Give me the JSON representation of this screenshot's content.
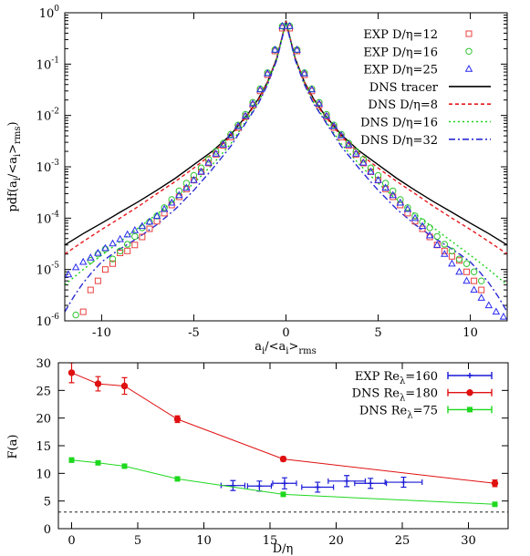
{
  "chart_data": [
    {
      "type": "scatter",
      "xlabel": "a_i/<a_i>_rms",
      "ylabel": "pdf(a_i/<a_i>_rms)",
      "xlim": [
        -12,
        12
      ],
      "ylim": [
        1e-06,
        1
      ],
      "y_scale": "log",
      "grid": false,
      "legend_position": "top-right",
      "x_ticks": [
        "-10",
        "-5",
        "0",
        "5",
        "10"
      ],
      "y_ticks": [
        {
          "base": "10",
          "exp": "0",
          "value": 1
        },
        {
          "base": "10",
          "exp": "-1",
          "value": 0.1
        },
        {
          "base": "10",
          "exp": "-2",
          "value": 0.01
        },
        {
          "base": "10",
          "exp": "-3",
          "value": 0.001
        },
        {
          "base": "10",
          "exp": "-4",
          "value": 0.0001
        },
        {
          "base": "10",
          "exp": "-5",
          "value": 1e-05
        },
        {
          "base": "10",
          "exp": "-6",
          "value": 1e-06
        }
      ],
      "series": [
        {
          "name": "EXP D/η=12",
          "kind": "points",
          "marker": "square",
          "color": "#e8403f",
          "x": [
            -11.0,
            -10.6,
            -10.2,
            -9.8,
            -9.4,
            -9.0,
            -8.6,
            -8.2,
            -7.8,
            -7.4,
            -7.0,
            -6.6,
            -6.2,
            -5.8,
            -5.4,
            -5.0,
            -4.6,
            -4.2,
            -3.8,
            -3.4,
            -3.0,
            -2.6,
            -2.2,
            -1.8,
            -1.4,
            -1.0,
            -0.6,
            -0.2,
            0.2,
            0.6,
            1.0,
            1.4,
            1.8,
            2.2,
            2.6,
            3.0,
            3.4,
            3.8,
            4.2,
            4.6,
            5.0,
            5.4,
            5.8,
            6.2,
            6.6,
            7.0,
            7.4,
            7.8,
            8.2,
            8.6,
            9.0,
            9.4,
            9.8,
            10.2,
            10.6
          ],
          "y": [
            1.5e-06,
            4e-06,
            6e-06,
            1e-05,
            1.3e-05,
            2.1e-05,
            2.3e-05,
            3e-05,
            4.3e-05,
            6.2e-05,
            8.7e-05,
            0.000125,
            0.00018,
            0.00026,
            0.00037,
            0.00055,
            0.0008,
            0.00118,
            0.00175,
            0.0026,
            0.0038,
            0.0058,
            0.0095,
            0.016,
            0.03,
            0.062,
            0.18,
            0.5,
            0.5,
            0.18,
            0.062,
            0.03,
            0.016,
            0.0095,
            0.0058,
            0.0038,
            0.0026,
            0.00175,
            0.00118,
            0.0008,
            0.00055,
            0.00037,
            0.00026,
            0.00018,
            0.000125,
            8.7e-05,
            6.2e-05,
            4.3e-05,
            3e-05,
            2.3e-05,
            1.8e-05,
            1.5e-05,
            9e-06,
            6e-06,
            4e-06
          ]
        },
        {
          "name": "EXP D/η=16",
          "kind": "points",
          "marker": "circle",
          "color": "#2ec42e",
          "x": [
            -11.4,
            -10.6,
            -10.2,
            -9.8,
            -9.4,
            -9.0,
            -8.6,
            -8.2,
            -7.8,
            -7.4,
            -7.0,
            -6.6,
            -6.2,
            -5.8,
            -5.4,
            -5.0,
            -4.6,
            -4.2,
            -3.8,
            -3.4,
            -3.0,
            -2.6,
            -2.2,
            -1.8,
            -1.4,
            -1.0,
            -0.6,
            -0.2,
            0.2,
            0.6,
            1.0,
            1.4,
            1.8,
            2.2,
            2.6,
            3.0,
            3.4,
            3.8,
            4.2,
            4.6,
            5.0,
            5.4,
            5.8,
            6.2,
            6.6,
            7.0,
            7.4,
            7.8,
            8.2,
            8.6,
            9.0,
            9.4,
            9.8,
            10.2,
            10.6
          ],
          "y": [
            1.3e-06,
            1.5e-05,
            2e-05,
            2.5e-05,
            1.6e-05,
            2.3e-05,
            3.1e-05,
            4.4e-05,
            6.5e-05,
            8.5e-05,
            0.00011,
            0.00016,
            0.00023,
            0.00034,
            0.00048,
            0.00068,
            0.00095,
            0.0014,
            0.002,
            0.0029,
            0.0043,
            0.0065,
            0.0105,
            0.018,
            0.033,
            0.068,
            0.19,
            0.55,
            0.55,
            0.19,
            0.068,
            0.033,
            0.018,
            0.0105,
            0.0065,
            0.0043,
            0.0029,
            0.002,
            0.0014,
            0.00095,
            0.00068,
            0.00048,
            0.00034,
            0.00023,
            0.00016,
            0.00011,
            8.5e-05,
            6.5e-05,
            4.4e-05,
            3.1e-05,
            2.3e-05,
            1.6e-05,
            1.3e-05,
            9e-06,
            6e-06
          ]
        },
        {
          "name": "EXP D/η=25",
          "kind": "points",
          "marker": "triangle",
          "color": "#2a2af0",
          "x": [
            -11.8,
            -11.4,
            -11.0,
            -10.6,
            -10.2,
            -9.8,
            -9.4,
            -9.0,
            -8.6,
            -8.2,
            -7.8,
            -7.4,
            -7.0,
            -6.6,
            -6.2,
            -5.8,
            -5.4,
            -5.0,
            -4.6,
            -4.2,
            -3.8,
            -3.4,
            -3.0,
            -2.6,
            -2.2,
            -1.8,
            -1.4,
            -1.0,
            -0.6,
            -0.2,
            0.2,
            0.6,
            1.0,
            1.4,
            1.8,
            2.2,
            2.6,
            3.0,
            3.4,
            3.8,
            4.2,
            4.6,
            5.0,
            5.4,
            5.8,
            6.2,
            6.6,
            7.0,
            7.4,
            7.8,
            8.2,
            8.6,
            9.0,
            9.4,
            9.8,
            10.2,
            10.6,
            11.0,
            11.4,
            11.8
          ],
          "y": [
            8e-06,
            1.1e-05,
            1.4e-05,
            1.7e-05,
            2.1e-05,
            2.6e-05,
            3.2e-05,
            3.9e-05,
            4.8e-05,
            5.8e-05,
            7e-05,
            8.5e-05,
            0.00011,
            0.00015,
            0.0002,
            0.00028,
            0.00039,
            0.00055,
            0.0008,
            0.0012,
            0.0018,
            0.0027,
            0.0041,
            0.0062,
            0.0098,
            0.017,
            0.032,
            0.066,
            0.19,
            0.55,
            0.55,
            0.19,
            0.066,
            0.032,
            0.017,
            0.0098,
            0.0062,
            0.0041,
            0.0027,
            0.0018,
            0.0012,
            0.0008,
            0.00055,
            0.00039,
            0.00028,
            0.0002,
            0.00015,
            0.0001,
            7e-05,
            4.6e-05,
            3e-05,
            2e-05,
            1.3e-05,
            9e-06,
            6e-06,
            4e-06,
            2.8e-06,
            2e-06,
            1.5e-06,
            1.2e-06
          ]
        },
        {
          "name": "DNS tracer",
          "kind": "line",
          "color": "#000000",
          "dash": "",
          "x": [
            -12,
            -11,
            -10,
            -9,
            -8,
            -7,
            -6,
            -5,
            -4,
            -3,
            -2,
            -1.5,
            -1,
            -0.5,
            -0.2,
            0,
            0.2,
            0.5,
            1,
            1.5,
            2,
            3,
            4,
            5,
            6,
            7,
            8,
            9,
            10,
            11,
            12
          ],
          "y": [
            3e-05,
            5e-05,
            8e-05,
            0.00013,
            0.00021,
            0.00035,
            0.0006,
            0.0011,
            0.002,
            0.0042,
            0.0115,
            0.021,
            0.045,
            0.13,
            0.35,
            0.7,
            0.35,
            0.13,
            0.045,
            0.021,
            0.0115,
            0.0042,
            0.002,
            0.0011,
            0.0006,
            0.00035,
            0.00021,
            0.00013,
            8e-05,
            5e-05,
            3e-05
          ]
        },
        {
          "name": "DNS D/η=8",
          "kind": "line",
          "color": "#e8171b",
          "dash": "4,3",
          "x": [
            -12,
            -11,
            -10,
            -9,
            -8,
            -7,
            -6,
            -5,
            -4,
            -3,
            -2,
            -1.5,
            -1,
            -0.5,
            -0.2,
            0,
            0.2,
            0.5,
            1,
            1.5,
            2,
            3,
            4,
            5,
            6,
            7,
            8,
            9,
            10,
            11,
            12
          ],
          "y": [
            2e-05,
            3.5e-05,
            6e-05,
            0.0001,
            0.00017,
            0.0003,
            0.00052,
            0.00095,
            0.0018,
            0.0039,
            0.011,
            0.02,
            0.044,
            0.13,
            0.35,
            0.68,
            0.35,
            0.13,
            0.044,
            0.02,
            0.011,
            0.0039,
            0.0018,
            0.00095,
            0.00052,
            0.0003,
            0.00017,
            0.0001,
            6e-05,
            3.5e-05,
            2e-05
          ]
        },
        {
          "name": "DNS D/η=16",
          "kind": "line",
          "color": "#15d415",
          "dash": "2,3",
          "x": [
            -12,
            -11,
            -10,
            -9,
            -8,
            -7,
            -6,
            -5,
            -4,
            -3,
            -2,
            -1.5,
            -1,
            -0.5,
            -0.2,
            0,
            0.2,
            0.5,
            1,
            1.5,
            2,
            3,
            4,
            5,
            6,
            7,
            8,
            9,
            10,
            11,
            12
          ],
          "y": [
            5e-06,
            1e-05,
            1.9e-05,
            3.5e-05,
            6.5e-05,
            0.00012,
            0.00023,
            0.00048,
            0.0011,
            0.0028,
            0.0095,
            0.018,
            0.042,
            0.125,
            0.34,
            0.66,
            0.34,
            0.125,
            0.042,
            0.018,
            0.0095,
            0.0028,
            0.0011,
            0.00048,
            0.00023,
            0.00012,
            6.5e-05,
            3.5e-05,
            1.9e-05,
            1e-05,
            5e-06
          ]
        },
        {
          "name": "DNS D/η=32",
          "kind": "line",
          "color": "#2a2ad4",
          "dash": "7,3,2,3",
          "x": [
            -12,
            -11.5,
            -11,
            -10.5,
            -10,
            -9.5,
            -9,
            -8,
            -7,
            -6,
            -5,
            -4,
            -3,
            -2,
            -1.5,
            -1,
            -0.5,
            -0.2,
            0,
            0.2,
            0.5,
            1,
            1.5,
            2,
            3,
            4,
            5,
            6,
            7,
            8,
            9,
            9.5,
            10,
            10.5,
            11,
            11.5,
            12
          ],
          "y": [
            1.5e-06,
            3e-06,
            5.5e-06,
            9e-06,
            1.4e-05,
            1.9e-05,
            2.5e-05,
            4.2e-05,
            7.5e-05,
            0.00015,
            0.00035,
            0.0009,
            0.0025,
            0.009,
            0.017,
            0.04,
            0.12,
            0.33,
            0.64,
            0.33,
            0.12,
            0.04,
            0.017,
            0.009,
            0.0025,
            0.0009,
            0.00035,
            0.00015,
            7.5e-05,
            4.2e-05,
            2.5e-05,
            1.9e-05,
            1.4e-05,
            9e-06,
            5.5e-06,
            3e-06,
            1.5e-06
          ]
        }
      ]
    },
    {
      "type": "line",
      "xlabel": "D/η",
      "ylabel": "F(a)",
      "xlim": [
        -1,
        33
      ],
      "ylim": [
        0,
        30
      ],
      "grid": false,
      "legend_position": "top-right",
      "x_ticks": [
        "0",
        "5",
        "10",
        "15",
        "20",
        "25",
        "30"
      ],
      "y_ticks": [
        "0",
        "5",
        "10",
        "15",
        "20",
        "25",
        "30"
      ],
      "reference_line_y": 3,
      "series": [
        {
          "name": "EXP Re",
          "sub": "λ",
          "name_suffix": "=160",
          "color": "#1a1ad6",
          "marker": "plus",
          "connect": false,
          "x": [
            12.2,
            14.2,
            16.1,
            18.6,
            20.8,
            22.6,
            25.1
          ],
          "y": [
            7.8,
            7.7,
            8.2,
            7.5,
            8.6,
            8.2,
            8.4
          ],
          "xerr": [
            0.9,
            0.9,
            0.9,
            1.2,
            1.4,
            1.2,
            1.4
          ],
          "yerr": [
            0.9,
            0.9,
            1.0,
            0.9,
            1.0,
            0.9,
            0.9
          ]
        },
        {
          "name": "DNS Re",
          "sub": "λ",
          "name_suffix": "=180",
          "color": "#e01010",
          "marker": "circle",
          "connect": true,
          "x": [
            0,
            2,
            4,
            8,
            16,
            32
          ],
          "y": [
            28.2,
            26.2,
            25.8,
            19.8,
            12.6,
            8.2
          ],
          "yerr": [
            1.8,
            1.3,
            1.5,
            0.6,
            0.4,
            0.6
          ]
        },
        {
          "name": "DNS Re",
          "sub": "λ",
          "name_suffix": "=75",
          "color": "#1ed81e",
          "marker": "square",
          "connect": true,
          "x": [
            0,
            2,
            4,
            8,
            16,
            32
          ],
          "y": [
            12.4,
            11.9,
            11.3,
            9.0,
            6.2,
            4.4
          ],
          "yerr": [
            0.4,
            0.3,
            0.2,
            0.2,
            0.2,
            0.2
          ]
        }
      ]
    }
  ]
}
